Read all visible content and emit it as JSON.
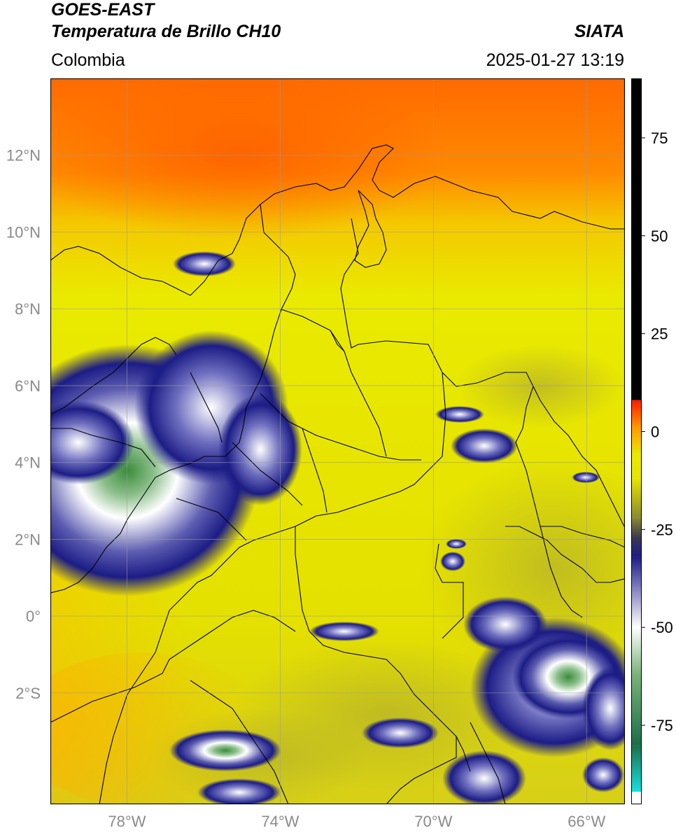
{
  "header": {
    "satellite": "GOES-EAST",
    "product": "Temperatura de Brillo CH10",
    "brand": "SIATA",
    "region": "Colombia",
    "timestamp": "2025-01-27 13:19"
  },
  "map": {
    "lat_labels": [
      "12°N",
      "10°N",
      "8°N",
      "6°N",
      "4°N",
      "2°N",
      "0°",
      "2°S"
    ],
    "lon_labels": [
      "78°W",
      "74°W",
      "70°W",
      "66°W"
    ],
    "lat_values": [
      12,
      10,
      8,
      6,
      4,
      2,
      0,
      -2
    ],
    "lon_values": [
      -78,
      -74,
      -70,
      -66
    ],
    "lat_range": [
      -4.9,
      14.0
    ],
    "lon_range": [
      -80.0,
      -65.0
    ],
    "gridlines": true
  },
  "colorbar": {
    "tick_labels": [
      "75",
      "50",
      "25",
      "0",
      "-25",
      "-50",
      "-75"
    ],
    "tick_values": [
      75,
      50,
      25,
      0,
      -25,
      -50,
      -75
    ],
    "range": [
      -95,
      90
    ],
    "segments": [
      {
        "from": 8,
        "to": 90,
        "color": "#000000"
      },
      {
        "from": -12,
        "to": 8,
        "color": "gradient-red-orange-yellow"
      },
      {
        "from": -22,
        "to": -12,
        "color": "gradient-yellow-olive"
      },
      {
        "from": -32,
        "to": -22,
        "color": "gradient-olive-navy"
      },
      {
        "from": -50,
        "to": -32,
        "color": "gradient-navy-white"
      },
      {
        "from": -80,
        "to": -50,
        "color": "gradient-white-green"
      },
      {
        "from": -92,
        "to": -80,
        "color": "gradient-green-cyan"
      },
      {
        "from": -95,
        "to": -92,
        "color": "#ffffff"
      }
    ]
  },
  "colors": {
    "warm": "#ff6a00",
    "yellow": "#eaea00",
    "olive": "#c8c420",
    "navy": "#1c1c86",
    "white": "#ffffff",
    "green": "#3a8c3a",
    "cyan": "#19d6d6"
  }
}
